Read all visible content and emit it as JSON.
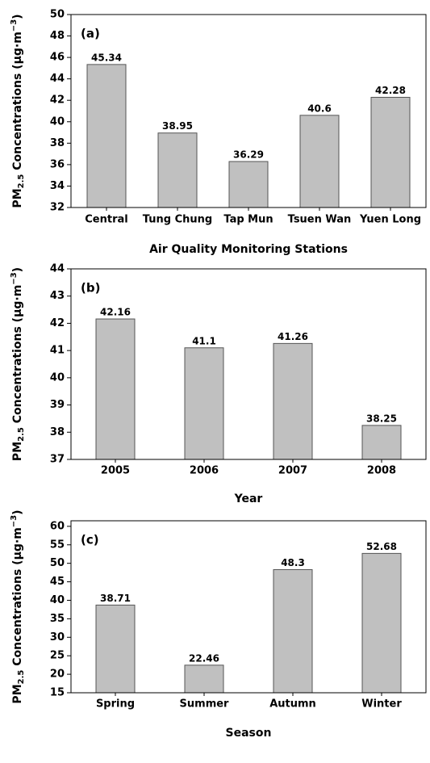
{
  "chart_data": [
    {
      "type": "bar",
      "panel_label": "(a)",
      "xlabel": "Air Quality Monitoring Stations",
      "ylabel": [
        "PM",
        "2.5",
        " Concentrations (μg·m",
        "−3",
        ")"
      ],
      "categories": [
        "Central",
        "Tung Chung",
        "Tap Mun",
        "Tsuen Wan",
        "Yuen Long"
      ],
      "values": [
        45.34,
        38.95,
        36.29,
        40.6,
        42.28
      ],
      "color": "#c0c0c0",
      "ylim": [
        32,
        50
      ],
      "yticks": [
        32,
        34,
        36,
        38,
        40,
        42,
        44,
        46,
        48,
        50
      ]
    },
    {
      "type": "bar",
      "panel_label": "(b)",
      "xlabel": "Year",
      "ylabel": [
        "PM",
        "2.5",
        " Concentrations (μg·m",
        "−3",
        ")"
      ],
      "categories": [
        "2005",
        "2006",
        "2007",
        "2008"
      ],
      "values": [
        42.16,
        41.1,
        41.26,
        38.25
      ],
      "color": "#c0c0c0",
      "ylim": [
        37,
        44
      ],
      "yticks": [
        37,
        38,
        39,
        40,
        41,
        42,
        43,
        44
      ]
    },
    {
      "type": "bar",
      "panel_label": "(c)",
      "xlabel": "Season",
      "ylabel": [
        "PM",
        "2.5",
        " Concentrations (μg·m",
        "−3",
        ")"
      ],
      "categories": [
        "Spring",
        "Summer",
        "Autumn",
        "Winter"
      ],
      "values": [
        38.71,
        22.46,
        48.3,
        52.68
      ],
      "color": "#c0c0c0",
      "ylim": [
        15,
        61.5
      ],
      "yticks": [
        15,
        20,
        25,
        30,
        35,
        40,
        45,
        50,
        55,
        60
      ]
    }
  ]
}
